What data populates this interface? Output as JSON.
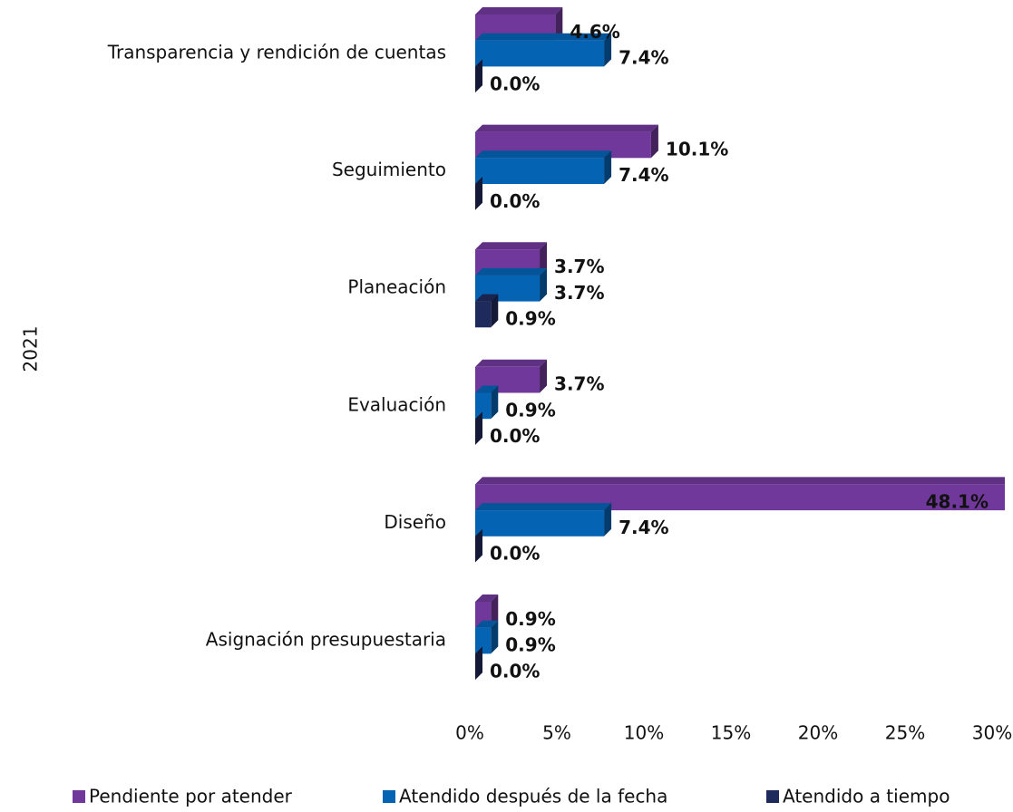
{
  "chart_data": {
    "type": "bar",
    "orientation": "horizontal",
    "three_d": true,
    "y_axis_label": "2021",
    "categories": [
      "Transparencia y rendición de cuentas",
      "Seguimiento",
      "Planeación",
      "Evaluación",
      "Diseño",
      "Asignación presupuestaria"
    ],
    "series": [
      {
        "name": "Pendiente por atender",
        "color": "#70389a",
        "values": [
          4.6,
          10.1,
          3.7,
          3.7,
          48.1,
          0.9
        ],
        "value_labels": [
          "4.6%",
          "10.1%",
          "3.7%",
          "3.7%",
          "48.1%",
          "0.9%"
        ]
      },
      {
        "name": "Atendido después de la fecha",
        "color": "#0563b4",
        "values": [
          7.4,
          7.4,
          3.7,
          0.9,
          7.4,
          0.9
        ],
        "value_labels": [
          "7.4%",
          "7.4%",
          "3.7%",
          "0.9%",
          "7.4%",
          "0.9%"
        ]
      },
      {
        "name": "Atendido a tiempo",
        "color": "#1f2a5c",
        "values": [
          0.0,
          0.0,
          0.9,
          0.0,
          0.0,
          0.0
        ],
        "value_labels": [
          "0.0%",
          "0.0%",
          "0.9%",
          "0.0%",
          "0.0%",
          "0.0%"
        ]
      }
    ],
    "xlim": [
      0,
      30
    ],
    "xticks": [
      {
        "value": 0,
        "label": "0%"
      },
      {
        "value": 5,
        "label": "5%"
      },
      {
        "value": 10,
        "label": "10%"
      },
      {
        "value": 15,
        "label": "15%"
      },
      {
        "value": 20,
        "label": "20%"
      },
      {
        "value": 25,
        "label": "25%"
      },
      {
        "value": 30,
        "label": "30%"
      }
    ],
    "grid": false,
    "legend": "bottom"
  }
}
